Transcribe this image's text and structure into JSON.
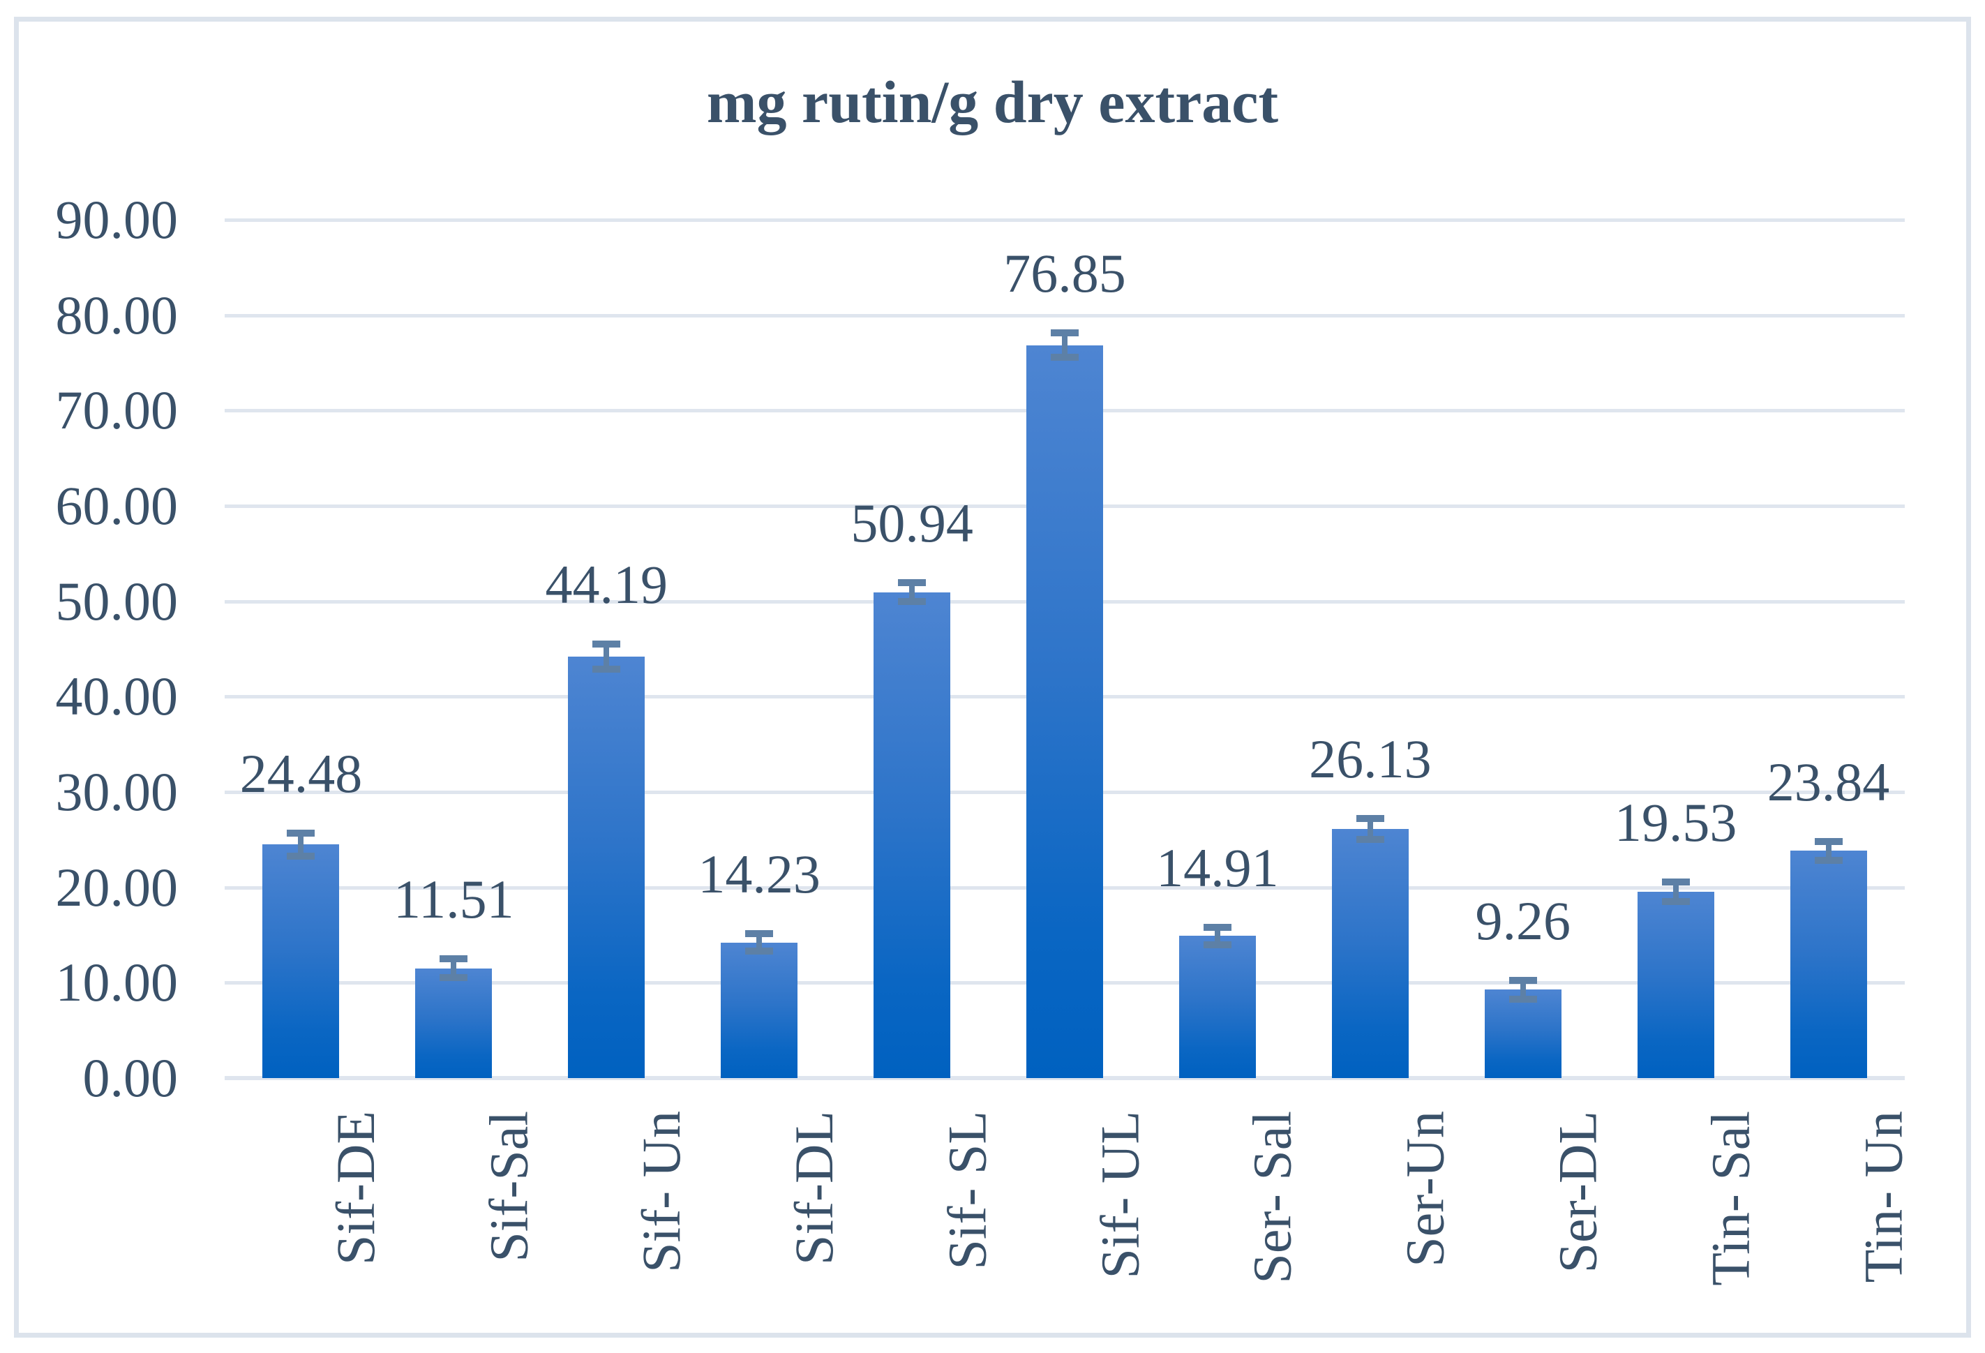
{
  "title": "mg rutin/g dry extract",
  "chart_data": {
    "type": "bar",
    "title": "mg rutin/g dry extract",
    "categories": [
      "Sif-DE",
      "Sif-Sal",
      "Sif- Un",
      "Sif-DL",
      "Sif- SL",
      "Sif- UL",
      "Ser- Sal",
      "Ser-Un",
      "Ser-DL",
      "Tin- Sal",
      "Tin- Un"
    ],
    "values": [
      24.48,
      11.51,
      44.19,
      14.23,
      50.94,
      76.85,
      14.91,
      26.13,
      9.26,
      19.53,
      23.84
    ],
    "value_labels": [
      "24.48",
      "11.51",
      "44.19",
      "14.23",
      "50.94",
      "76.85",
      "14.91",
      "26.13",
      "9.26",
      "19.53",
      "23.84"
    ],
    "error_bars": [
      1.2,
      1.0,
      1.3,
      0.9,
      1.0,
      1.3,
      0.9,
      1.1,
      1.0,
      1.0,
      1.0
    ],
    "y_ticks": [
      "0.00",
      "10.00",
      "20.00",
      "30.00",
      "40.00",
      "50.00",
      "60.00",
      "70.00",
      "80.00",
      "90.00"
    ],
    "ylim": [
      0,
      90
    ],
    "xlabel": "",
    "ylabel": "",
    "grid": true,
    "legend": "none",
    "colors": {
      "bar_gradient_top": "#4e85d2",
      "bar_gradient_bottom": "#0061c0",
      "error_bar": "#5d80a6",
      "gridline": "#dfe5ee",
      "text": "#3a5169",
      "frame_border": "#dce3ec",
      "background": "#ffffff"
    }
  }
}
